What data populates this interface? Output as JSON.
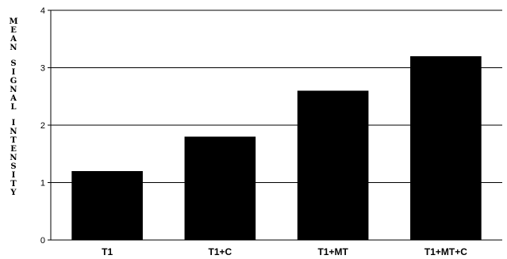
{
  "chart_data": {
    "type": "bar",
    "categories": [
      "T1",
      "T1+C",
      "T1+MT",
      "T1+MT+C"
    ],
    "values": [
      1.2,
      1.8,
      2.6,
      3.2
    ],
    "title": "",
    "xlabel": "",
    "ylabel": "MEAN SIGNAL INTENSITY",
    "ylim": [
      0,
      4
    ],
    "yticks": [
      0,
      1,
      2,
      3,
      4
    ],
    "grid": true,
    "legend": "none",
    "bar_color": "#000000"
  }
}
